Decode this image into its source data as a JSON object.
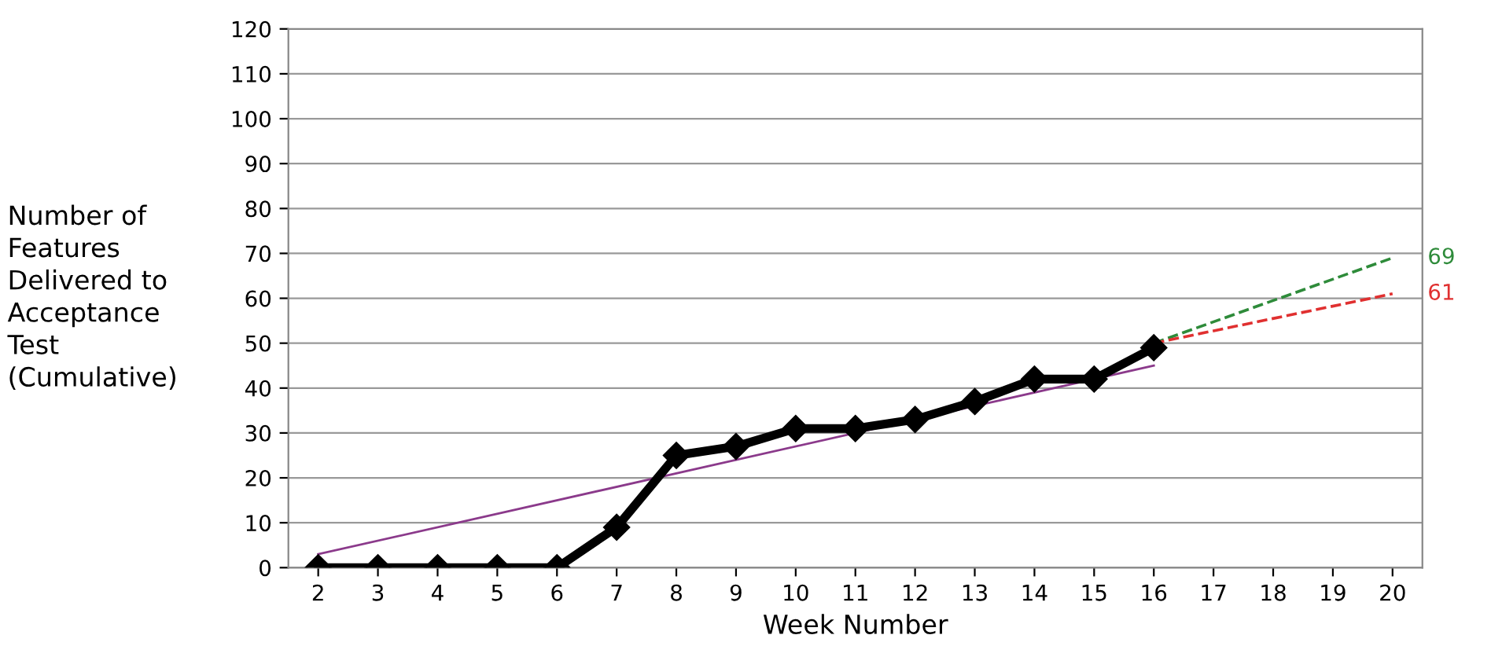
{
  "chart_data": {
    "type": "line",
    "xlabel": "Week Number",
    "ylabel": "Number of\nFeatures\nDelivered to\nAcceptance\nTest\n(Cumulative)",
    "xlim": [
      1.5,
      20.5
    ],
    "xticks": [
      2,
      3,
      4,
      5,
      6,
      7,
      8,
      9,
      10,
      11,
      12,
      13,
      14,
      15,
      16,
      17,
      18,
      19,
      20
    ],
    "ylim": [
      0,
      120
    ],
    "yticks": [
      0,
      10,
      20,
      30,
      40,
      50,
      60,
      70,
      80,
      90,
      100,
      110,
      120
    ],
    "grid": "y",
    "legend": false,
    "series": [
      {
        "color": "#000000",
        "marker": "diamond",
        "x": [
          2,
          3,
          4,
          5,
          6,
          7,
          8,
          9,
          10,
          11,
          12,
          13,
          14,
          15,
          16
        ],
        "values": [
          0,
          0,
          0,
          0,
          0,
          9,
          25,
          27,
          31,
          31,
          33,
          37,
          42,
          42,
          49
        ]
      },
      {
        "color": "#8b3a8b",
        "marker": "none",
        "x": [
          2,
          16
        ],
        "values": [
          3,
          45
        ]
      },
      {
        "color": "#2e8b3a",
        "marker": "none",
        "line_style": "dashed",
        "x": [
          16,
          20
        ],
        "values": [
          50,
          69
        ]
      },
      {
        "color": "#e03030",
        "marker": "none",
        "line_style": "dashed",
        "x": [
          16,
          20
        ],
        "values": [
          50,
          61
        ]
      }
    ],
    "annotations": [
      {
        "text": "69",
        "x": 20,
        "y": 69
      },
      {
        "text": "61",
        "x": 20,
        "y": 61
      }
    ]
  }
}
